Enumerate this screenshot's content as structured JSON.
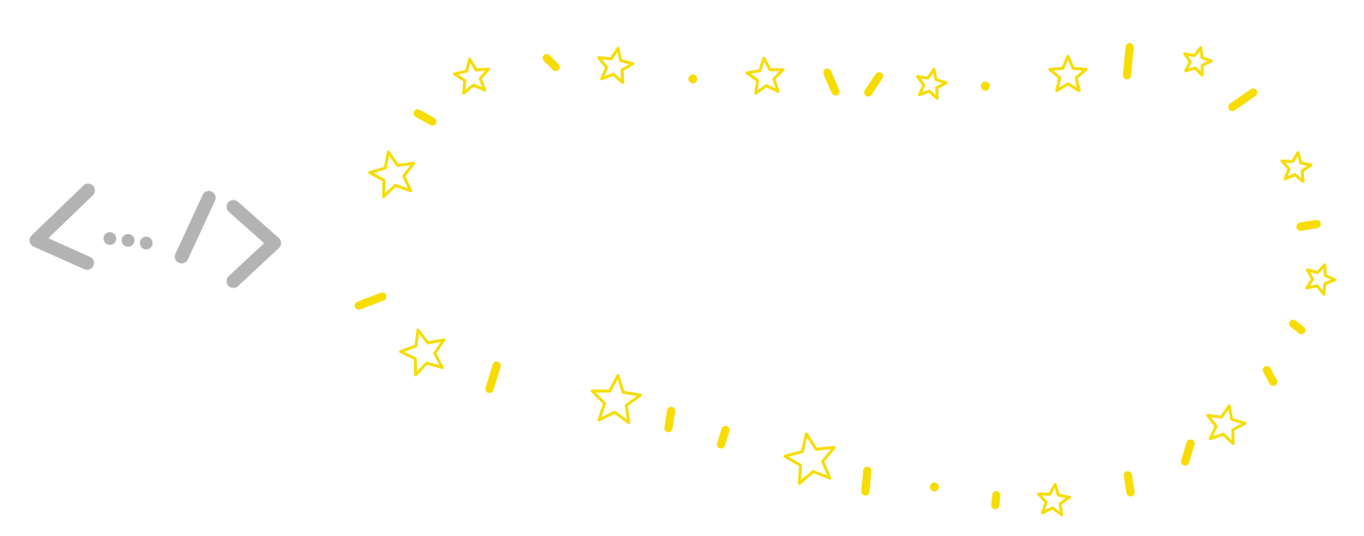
{
  "colors": {
    "background": "#ffffff",
    "code_icon": "#b3b3b3",
    "star_border": "#f7dc00"
  },
  "icons": {
    "code_icon": "code-ellipsis-slash-icon",
    "star": "star-outline-icon",
    "border": "dashed-star-bubble-border"
  }
}
